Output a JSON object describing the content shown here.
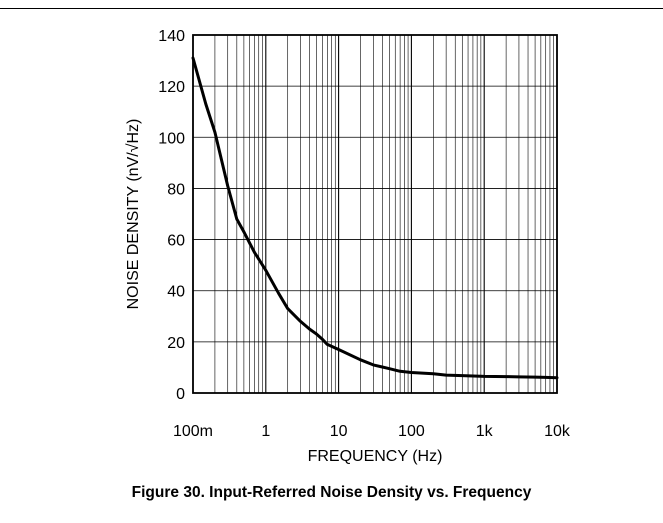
{
  "figure": {
    "caption": "Figure 30. Input-Referred Noise Density vs. Frequency"
  },
  "chart_data": {
    "type": "line",
    "title": "",
    "xlabel": "FREQUENCY (Hz)",
    "ylabel": "NOISE DENSITY (nV/√Hz)",
    "x_scale": "log",
    "xlim": [
      0.1,
      10000
    ],
    "ylim": [
      0,
      140
    ],
    "x_ticks": [
      {
        "value": 0.1,
        "label": "100m"
      },
      {
        "value": 1,
        "label": "1"
      },
      {
        "value": 10,
        "label": "10"
      },
      {
        "value": 100,
        "label": "100"
      },
      {
        "value": 1000,
        "label": "1k"
      },
      {
        "value": 10000,
        "label": "10k"
      }
    ],
    "y_ticks": [
      0,
      20,
      40,
      60,
      80,
      100,
      120,
      140
    ],
    "grid": true,
    "series": [
      {
        "color": "#000000",
        "x": [
          0.1,
          0.15,
          0.2,
          0.3,
          0.4,
          0.5,
          0.7,
          1,
          1.5,
          2,
          3,
          4,
          5,
          6,
          7,
          10,
          20,
          30,
          50,
          70,
          100,
          200,
          300,
          500,
          1000,
          2000,
          3000,
          5000,
          7000,
          10000
        ],
        "y": [
          131,
          113,
          102,
          81,
          68,
          63,
          55,
          48,
          39,
          33,
          28,
          25,
          23,
          21,
          19,
          17,
          13,
          11,
          9.5,
          8.5,
          8,
          7.5,
          7,
          6.8,
          6.5,
          6.4,
          6.3,
          6.2,
          6.1,
          6.0
        ]
      }
    ]
  }
}
